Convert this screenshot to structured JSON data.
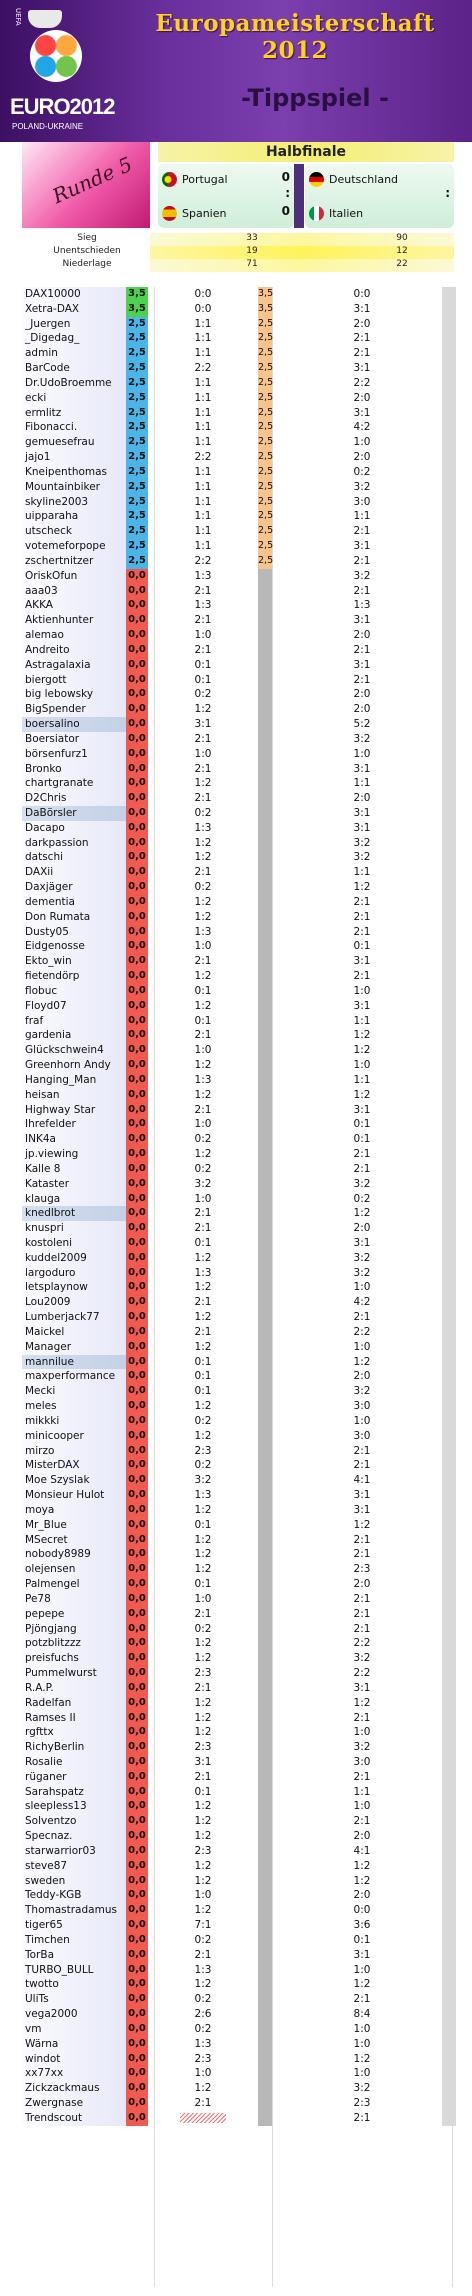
{
  "header": {
    "title": "Europameisterschaft 2012",
    "subtitle": "-Tippspiel -",
    "logo_brand": "EURO2012",
    "logo_sub": "POLAND-UKRAINE",
    "logo_uefa": "UEFA"
  },
  "round": {
    "label": "Runde 5"
  },
  "match_section": {
    "title": "Halbfinale",
    "matches": [
      {
        "home": "Portugal",
        "home_goals": "0",
        "away": "Spanien",
        "away_goals": "0",
        "separator": ":"
      },
      {
        "home": "Deutschland",
        "home_goals": "",
        "away": "Italien",
        "away_goals": "",
        "separator": ":"
      }
    ],
    "flag_colors": {
      "Portugal": "#c8102e",
      "Spanien": "#f1bf00",
      "Deutschland": "#000000",
      "Italien": "#009246"
    }
  },
  "stats": {
    "rows": [
      {
        "label": "Sieg",
        "m1": "33",
        "m2": "90"
      },
      {
        "label": "Unentschieden",
        "m1": "19",
        "m2": "12"
      },
      {
        "label": "Niederlage",
        "m1": "71",
        "m2": "22"
      }
    ]
  },
  "colors": {
    "green_points": "#4ed14e",
    "blue_points": "#4cb5e7",
    "red_points": "#f05a50",
    "orange_points": "#f9c48c",
    "gray_points": "#b8b8b8"
  },
  "table": {
    "rows": [
      [
        "DAX10000",
        "3,5",
        "0:0",
        "3,5",
        "0:0"
      ],
      [
        "Xetra-DAX",
        "3,5",
        "0:0",
        "3,5",
        "3:1"
      ],
      [
        "_Juergen",
        "2,5",
        "1:1",
        "2,5",
        "2:0"
      ],
      [
        "_Digedag_",
        "2,5",
        "1:1",
        "2,5",
        "2:1"
      ],
      [
        "admin",
        "2,5",
        "1:1",
        "2,5",
        "2:1"
      ],
      [
        "BarCode",
        "2,5",
        "2:2",
        "2,5",
        "3:1"
      ],
      [
        "Dr.UdoBroemme",
        "2,5",
        "1:1",
        "2,5",
        "2:2"
      ],
      [
        "ecki",
        "2,5",
        "1:1",
        "2,5",
        "2:0"
      ],
      [
        "ermlitz",
        "2,5",
        "1:1",
        "2,5",
        "3:1"
      ],
      [
        "Fibonacci.",
        "2,5",
        "1:1",
        "2,5",
        "4:2"
      ],
      [
        "gemuesefrau",
        "2,5",
        "1:1",
        "2,5",
        "1:0"
      ],
      [
        "jajo1",
        "2,5",
        "2:2",
        "2,5",
        "2:0"
      ],
      [
        "Kneipenthomas",
        "2,5",
        "1:1",
        "2,5",
        "0:2"
      ],
      [
        "Mountainbiker",
        "2,5",
        "1:1",
        "2,5",
        "3:2"
      ],
      [
        "skyline2003",
        "2,5",
        "1:1",
        "2,5",
        "3:0"
      ],
      [
        "uipparaha",
        "2,5",
        "1:1",
        "2,5",
        "1:1"
      ],
      [
        "utscheck",
        "2,5",
        "1:1",
        "2,5",
        "2:1"
      ],
      [
        "votemeforpope",
        "2,5",
        "1:1",
        "2,5",
        "3:1"
      ],
      [
        "zschertnitzer",
        "2,5",
        "2:2",
        "2,5",
        "2:1"
      ],
      [
        "OriskOfun",
        "0,0",
        "1:3",
        "",
        "3:2"
      ],
      [
        "aaa03",
        "0,0",
        "2:1",
        "",
        "2:1"
      ],
      [
        "AKKA",
        "0,0",
        "1:3",
        "",
        "1:3"
      ],
      [
        "Aktienhunter",
        "0,0",
        "2:1",
        "",
        "3:1"
      ],
      [
        "alemao",
        "0,0",
        "1:0",
        "",
        "2:0"
      ],
      [
        "Andreito",
        "0,0",
        "2:1",
        "",
        "2:1"
      ],
      [
        "Astragalaxia",
        "0,0",
        "0:1",
        "",
        "3:1"
      ],
      [
        "biergott",
        "0,0",
        "0:1",
        "",
        "2:1"
      ],
      [
        "big lebowsky",
        "0,0",
        "0:2",
        "",
        "2:0"
      ],
      [
        "BigSpender",
        "0,0",
        "1:2",
        "",
        "2:0"
      ],
      [
        "boersalino",
        "0,0",
        "3:1",
        "",
        "5:2"
      ],
      [
        "Boersiator",
        "0,0",
        "2:1",
        "",
        "3:2"
      ],
      [
        "börsenfurz1",
        "0,0",
        "1:0",
        "",
        "1:0"
      ],
      [
        "Bronko",
        "0,0",
        "2:1",
        "",
        "3:1"
      ],
      [
        "chartgranate",
        "0,0",
        "1:2",
        "",
        "1:1"
      ],
      [
        "D2Chris",
        "0,0",
        "2:1",
        "",
        "2:0"
      ],
      [
        "DaBörsler",
        "0,0",
        "0:2",
        "",
        "3:1"
      ],
      [
        "Dacapo",
        "0,0",
        "1:3",
        "",
        "3:1"
      ],
      [
        "darkpassion",
        "0,0",
        "1:2",
        "",
        "3:2"
      ],
      [
        "datschi",
        "0,0",
        "1:2",
        "",
        "3:2"
      ],
      [
        "DAXii",
        "0,0",
        "2:1",
        "",
        "1:1"
      ],
      [
        "Daxjäger",
        "0,0",
        "0:2",
        "",
        "1:2"
      ],
      [
        "dementia",
        "0,0",
        "1:2",
        "",
        "2:1"
      ],
      [
        "Don Rumata",
        "0,0",
        "1:2",
        "",
        "2:1"
      ],
      [
        "Dusty05",
        "0,0",
        "1:3",
        "",
        "2:1"
      ],
      [
        "Eidgenosse",
        "0,0",
        "1:0",
        "",
        "0:1"
      ],
      [
        "Ekto_win",
        "0,0",
        "2:1",
        "",
        "3:1"
      ],
      [
        "fietendörp",
        "0,0",
        "1:2",
        "",
        "2:1"
      ],
      [
        "flobuc",
        "0,0",
        "0:1",
        "",
        "1:0"
      ],
      [
        "Floyd07",
        "0,0",
        "1:2",
        "",
        "3:1"
      ],
      [
        "fraf",
        "0,0",
        "0:1",
        "",
        "1:1"
      ],
      [
        "gardenia",
        "0,0",
        "2:1",
        "",
        "1:2"
      ],
      [
        "Glückschwein4",
        "0,0",
        "1:0",
        "",
        "1:2"
      ],
      [
        "Greenhorn Andy",
        "0,0",
        "1:2",
        "",
        "1:0"
      ],
      [
        "Hanging_Man",
        "0,0",
        "1:3",
        "",
        "1:1"
      ],
      [
        "heisan",
        "0,0",
        "1:2",
        "",
        "1:2"
      ],
      [
        "Highway Star",
        "0,0",
        "2:1",
        "",
        "3:1"
      ],
      [
        "Ihrefelder",
        "0,0",
        "1:0",
        "",
        "0:1"
      ],
      [
        "INK4a",
        "0,0",
        "0:2",
        "",
        "0:1"
      ],
      [
        "jp.viewing",
        "0,0",
        "1:2",
        "",
        "2:1"
      ],
      [
        "Kalle 8",
        "0,0",
        "0:2",
        "",
        "2:1"
      ],
      [
        "Kataster",
        "0,0",
        "3:2",
        "",
        "3:2"
      ],
      [
        "klauga",
        "0,0",
        "1:0",
        "",
        "0:2"
      ],
      [
        "knedlbrot",
        "0,0",
        "2:1",
        "",
        "1:2"
      ],
      [
        "knuspri",
        "0,0",
        "2:1",
        "",
        "2:0"
      ],
      [
        "kostoleni",
        "0,0",
        "0:1",
        "",
        "3:1"
      ],
      [
        "kuddel2009",
        "0,0",
        "1:2",
        "",
        "3:2"
      ],
      [
        "largoduro",
        "0,0",
        "1:3",
        "",
        "3:2"
      ],
      [
        "letsplaynow",
        "0,0",
        "1:2",
        "",
        "1:0"
      ],
      [
        "Lou2009",
        "0,0",
        "2:1",
        "",
        "4:2"
      ],
      [
        "Lumberjack77",
        "0,0",
        "1:2",
        "",
        "2:1"
      ],
      [
        "Maickel",
        "0,0",
        "2:1",
        "",
        "2:2"
      ],
      [
        "Manager",
        "0,0",
        "1:2",
        "",
        "1:0"
      ],
      [
        "mannilue",
        "0,0",
        "0:1",
        "",
        "1:2"
      ],
      [
        "maxperformance",
        "0,0",
        "0:1",
        "",
        "2:0"
      ],
      [
        "Mecki",
        "0,0",
        "0:1",
        "",
        "3:2"
      ],
      [
        "meles",
        "0,0",
        "1:2",
        "",
        "3:0"
      ],
      [
        "mikkki",
        "0,0",
        "0:2",
        "",
        "1:0"
      ],
      [
        "minicooper",
        "0,0",
        "1:2",
        "",
        "3:0"
      ],
      [
        "mirzo",
        "0,0",
        "2:3",
        "",
        "2:1"
      ],
      [
        "MisterDAX",
        "0,0",
        "0:2",
        "",
        "2:1"
      ],
      [
        "Moe Szyslak",
        "0,0",
        "3:2",
        "",
        "4:1"
      ],
      [
        "Monsieur Hulot",
        "0,0",
        "1:3",
        "",
        "3:1"
      ],
      [
        "moya",
        "0,0",
        "1:2",
        "",
        "3:1"
      ],
      [
        "Mr_Blue",
        "0,0",
        "0:1",
        "",
        "1:2"
      ],
      [
        "MSecret",
        "0,0",
        "1:2",
        "",
        "2:1"
      ],
      [
        "nobody8989",
        "0,0",
        "1:2",
        "",
        "2:1"
      ],
      [
        "olejensen",
        "0,0",
        "1:2",
        "",
        "2:3"
      ],
      [
        "Palmengel",
        "0,0",
        "0:1",
        "",
        "2:0"
      ],
      [
        "Pe78",
        "0,0",
        "1:0",
        "",
        "2:1"
      ],
      [
        "pepepe",
        "0,0",
        "2:1",
        "",
        "2:1"
      ],
      [
        "Pjöngjang",
        "0,0",
        "0:2",
        "",
        "2:1"
      ],
      [
        "potzblitzzz",
        "0,0",
        "1:2",
        "",
        "2:2"
      ],
      [
        "preisfuchs",
        "0,0",
        "1:2",
        "",
        "3:2"
      ],
      [
        "Pummelwurst",
        "0,0",
        "2:3",
        "",
        "2:2"
      ],
      [
        "R.A.P.",
        "0,0",
        "2:1",
        "",
        "3:1"
      ],
      [
        "Radelfan",
        "0,0",
        "1:2",
        "",
        "1:2"
      ],
      [
        "Ramses II",
        "0,0",
        "1:2",
        "",
        "2:1"
      ],
      [
        "rgfttx",
        "0,0",
        "1:2",
        "",
        "1:0"
      ],
      [
        "RichyBerlin",
        "0,0",
        "2:3",
        "",
        "3:2"
      ],
      [
        "Rosalie",
        "0,0",
        "3:1",
        "",
        "3:0"
      ],
      [
        "rüganer",
        "0,0",
        "2:1",
        "",
        "2:1"
      ],
      [
        "Sarahspatz",
        "0,0",
        "0:1",
        "",
        "1:1"
      ],
      [
        "sleepless13",
        "0,0",
        "1:2",
        "",
        "1:0"
      ],
      [
        "Solventzo",
        "0,0",
        "1:2",
        "",
        "2:1"
      ],
      [
        "Specnaz.",
        "0,0",
        "1:2",
        "",
        "2:0"
      ],
      [
        "starwarrior03",
        "0,0",
        "2:3",
        "",
        "4:1"
      ],
      [
        "steve87",
        "0,0",
        "1:2",
        "",
        "1:2"
      ],
      [
        "sweden",
        "0,0",
        "1:2",
        "",
        "1:2"
      ],
      [
        "Teddy-KGB",
        "0,0",
        "1:0",
        "",
        "2:0"
      ],
      [
        "Thomastradamus",
        "0,0",
        "1:2",
        "",
        "0:0"
      ],
      [
        "tiger65",
        "0,0",
        "7:1",
        "",
        "3:6"
      ],
      [
        "Timchen",
        "0,0",
        "0:2",
        "",
        "0:1"
      ],
      [
        "TorBa",
        "0,0",
        "2:1",
        "",
        "3:1"
      ],
      [
        "TURBO_BULL",
        "0,0",
        "1:3",
        "",
        "1:0"
      ],
      [
        "twotto",
        "0,0",
        "1:2",
        "",
        "1:2"
      ],
      [
        "UliTs",
        "0,0",
        "0:2",
        "",
        "2:1"
      ],
      [
        "vega2000",
        "0,0",
        "2:6",
        "",
        "8:4"
      ],
      [
        "vm",
        "0,0",
        "0:2",
        "",
        "1:0"
      ],
      [
        "Wärna",
        "0,0",
        "1:3",
        "",
        "1:0"
      ],
      [
        "windot",
        "0,0",
        "2:3",
        "",
        "1:2"
      ],
      [
        "xx77xx",
        "0,0",
        "1:0",
        "",
        "1:0"
      ],
      [
        "Zickzackmaus",
        "0,0",
        "1:2",
        "",
        "3:2"
      ],
      [
        "Zwergnase",
        "0,0",
        "2:1",
        "",
        "2:3"
      ],
      [
        "Trendscout",
        "0,0",
        "",
        "",
        "2:1"
      ]
    ],
    "highlighted_names": [
      "boersalino",
      "DaBörsler",
      "knedlbrot",
      "mannilue"
    ]
  }
}
